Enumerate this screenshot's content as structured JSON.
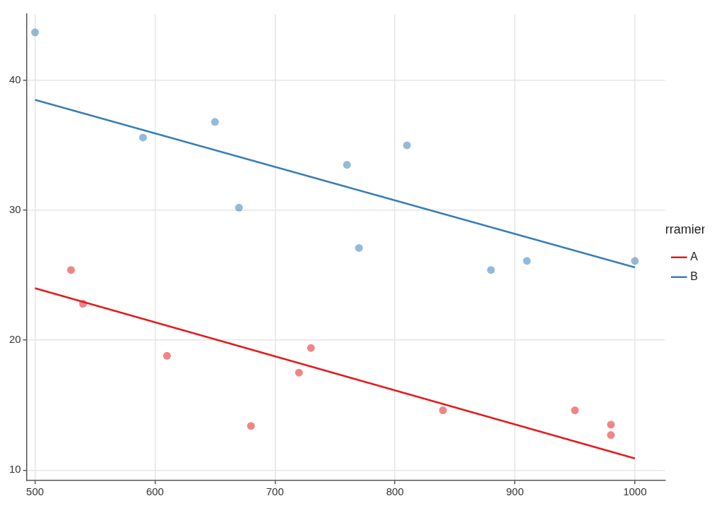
{
  "chart_data": {
    "type": "scatter",
    "legend_title": "herramienta",
    "legend": "right",
    "grid": true,
    "xlim": [
      493,
      1025
    ],
    "xticks": [
      500,
      600,
      700,
      800,
      900,
      1000
    ],
    "ylim": [
      9.2,
      45.1
    ],
    "yticks": [
      10,
      20,
      30,
      40
    ],
    "series": [
      {
        "name": "A",
        "color": "#e41a1c",
        "x": [
          530,
          540,
          610,
          680,
          720,
          730,
          840,
          950,
          980,
          980
        ],
        "values": [
          25.4,
          22.8,
          18.8,
          13.4,
          17.5,
          19.4,
          14.6,
          14.6,
          13.5,
          12.7
        ],
        "fit": {
          "x": [
            500,
            1000
          ],
          "values": [
            24.0,
            10.9
          ]
        }
      },
      {
        "name": "B",
        "color": "#377eb8",
        "x": [
          500,
          590,
          650,
          670,
          760,
          770,
          810,
          880,
          910,
          1000
        ],
        "values": [
          43.7,
          35.6,
          36.8,
          30.2,
          33.5,
          27.1,
          35.0,
          25.4,
          26.1,
          26.1
        ],
        "fit": {
          "x": [
            500,
            1000
          ],
          "values": [
            38.5,
            25.6
          ]
        }
      }
    ]
  }
}
